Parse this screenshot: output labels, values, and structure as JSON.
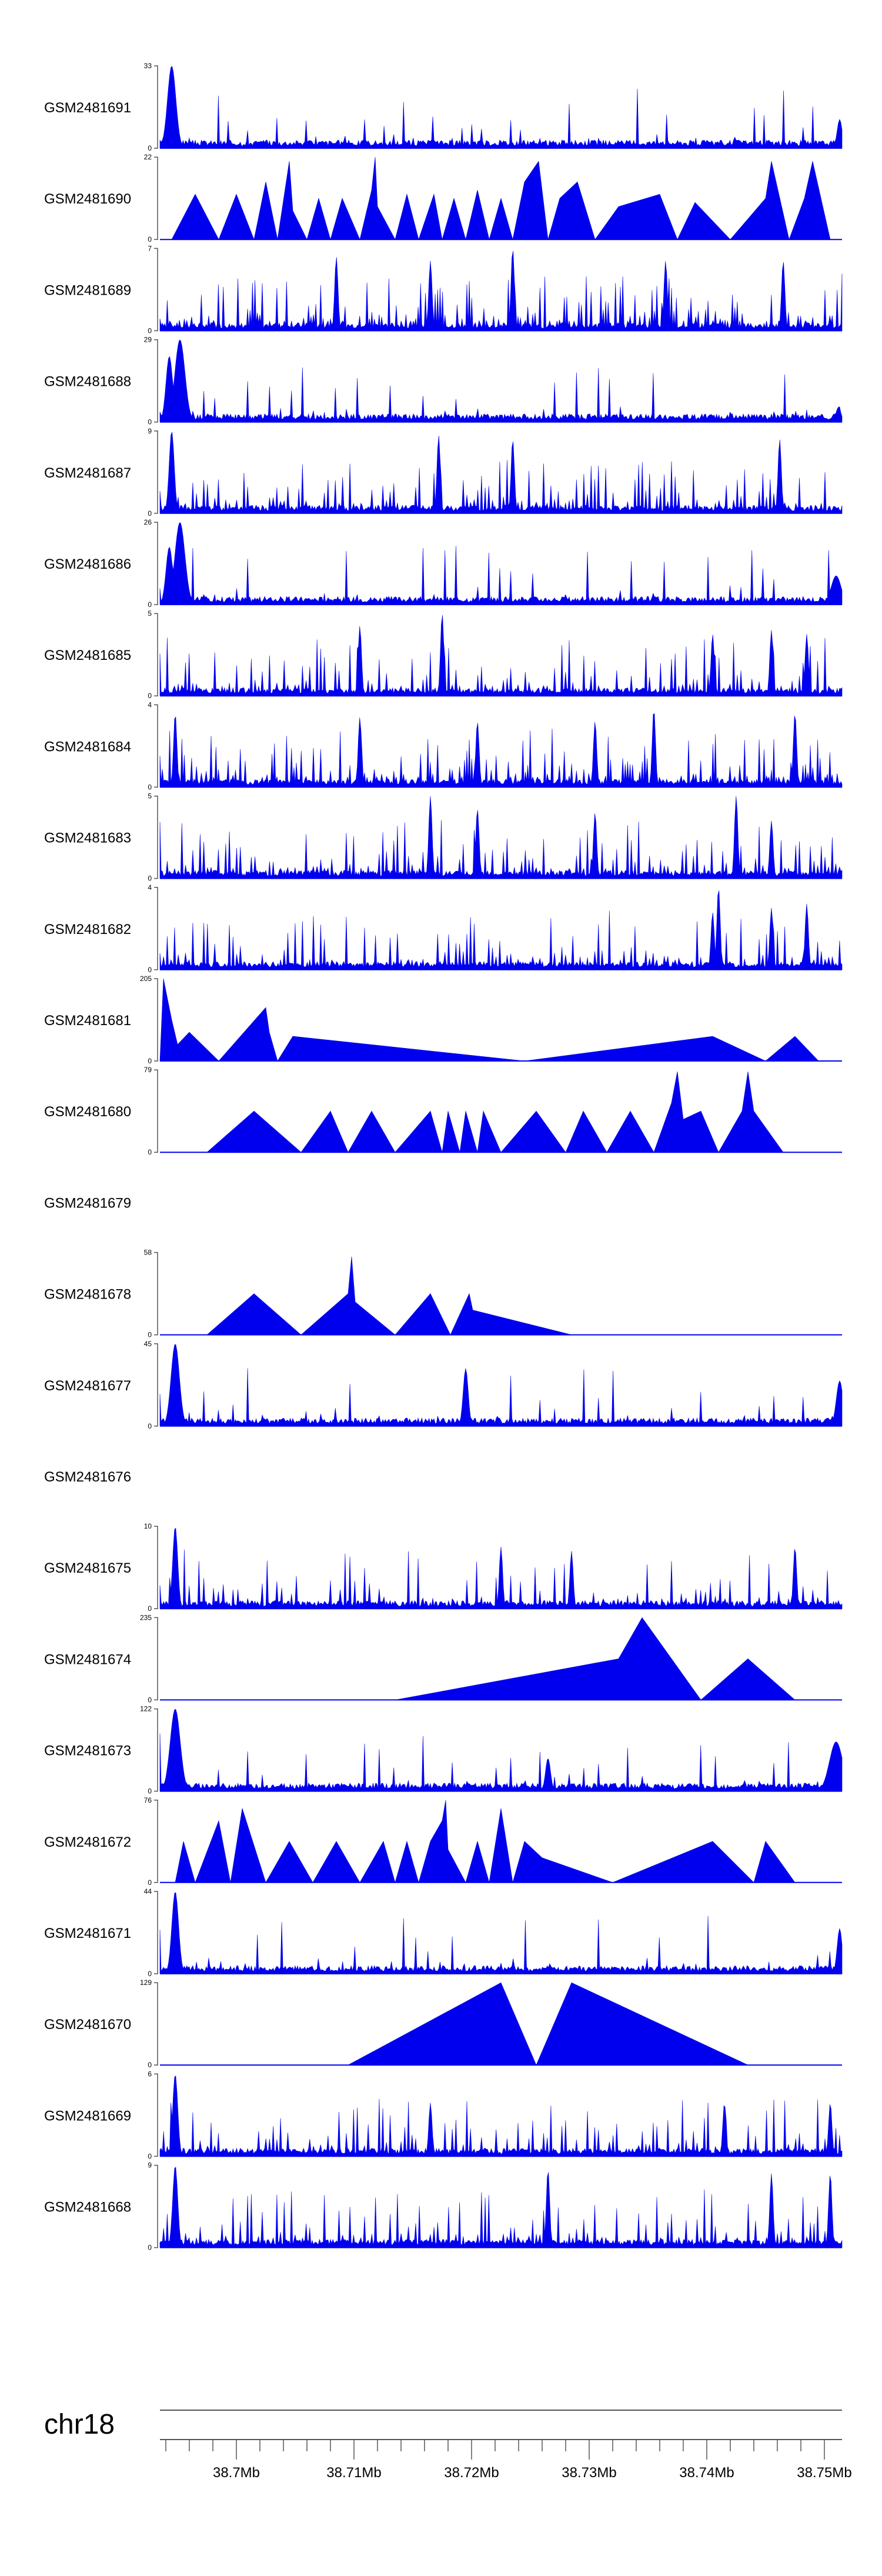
{
  "chart_data": {
    "type": "area",
    "title": "",
    "chromosome": "chr18",
    "track_color": "#0000ee",
    "axis_color": "#555555",
    "x_range_mb": [
      38.6935,
      38.7515
    ],
    "x_tick_labels": [
      {
        "pos": 38.7,
        "label": "38.7Mb"
      },
      {
        "pos": 38.71,
        "label": "38.71Mb"
      },
      {
        "pos": 38.72,
        "label": "38.72Mb"
      },
      {
        "pos": 38.73,
        "label": "38.73Mb"
      },
      {
        "pos": 38.74,
        "label": "38.74Mb"
      },
      {
        "pos": 38.75,
        "label": "38.75Mb"
      }
    ],
    "minor_tick_step_mb": 0.002,
    "tracks": [
      {
        "name": "GSM2481691",
        "ymax": 33,
        "ymin": 0,
        "kind": "dense",
        "spike_every": 8,
        "seed": 3,
        "peaks": [
          [
            38.6945,
            1.0,
            0.0005
          ],
          [
            38.7513,
            0.35,
            0.0003
          ]
        ]
      },
      {
        "name": "GSM2481690",
        "ymax": 22,
        "ymin": 0,
        "kind": "sparse",
        "points": [
          [
            38.6945,
            0
          ],
          [
            38.6965,
            0.55
          ],
          [
            38.6985,
            0
          ],
          [
            38.7,
            0.55
          ],
          [
            38.7015,
            0
          ],
          [
            38.7025,
            0.7
          ],
          [
            38.7035,
            0
          ],
          [
            38.7045,
            0.95
          ],
          [
            38.7048,
            0.35
          ],
          [
            38.706,
            0
          ],
          [
            38.707,
            0.5
          ],
          [
            38.708,
            0
          ],
          [
            38.709,
            0.5
          ],
          [
            38.7105,
            0
          ],
          [
            38.7115,
            0.6
          ],
          [
            38.7118,
            1.0
          ],
          [
            38.712,
            0.4
          ],
          [
            38.7135,
            0
          ],
          [
            38.7145,
            0.55
          ],
          [
            38.7155,
            0
          ],
          [
            38.7168,
            0.55
          ],
          [
            38.7175,
            0
          ],
          [
            38.7185,
            0.5
          ],
          [
            38.7195,
            0
          ],
          [
            38.7205,
            0.6
          ],
          [
            38.7215,
            0
          ],
          [
            38.7225,
            0.5
          ],
          [
            38.7235,
            0
          ],
          [
            38.7245,
            0.7
          ],
          [
            38.7257,
            0.95
          ],
          [
            38.7265,
            0
          ],
          [
            38.7275,
            0.5
          ],
          [
            38.729,
            0.7
          ],
          [
            38.7305,
            0
          ],
          [
            38.7325,
            0.4
          ],
          [
            38.736,
            0.55
          ],
          [
            38.7375,
            0
          ],
          [
            38.739,
            0.45
          ],
          [
            38.742,
            0
          ],
          [
            38.745,
            0.5
          ],
          [
            38.7455,
            0.95
          ],
          [
            38.747,
            0
          ],
          [
            38.7483,
            0.5
          ],
          [
            38.749,
            0.95
          ],
          [
            38.7505,
            0
          ]
        ]
      },
      {
        "name": "GSM2481689",
        "ymax": 7,
        "ymin": 0,
        "kind": "dense",
        "spike_every": 2,
        "seed": 7,
        "peaks": [
          [
            38.7085,
            0.9,
            0.0002
          ],
          [
            38.7165,
            0.85,
            0.0002
          ],
          [
            38.7235,
            1.0,
            0.0002
          ],
          [
            38.7365,
            0.85,
            0.0002
          ],
          [
            38.7465,
            0.85,
            0.0002
          ]
        ]
      },
      {
        "name": "GSM2481688",
        "ymax": 29,
        "ymin": 0,
        "kind": "dense",
        "spike_every": 9,
        "seed": 11,
        "peaks": [
          [
            38.6943,
            0.8,
            0.0004
          ],
          [
            38.6952,
            1.0,
            0.0006
          ],
          [
            38.7512,
            0.18,
            0.0003
          ]
        ]
      },
      {
        "name": "GSM2481687",
        "ymax": 9,
        "ymin": 0,
        "kind": "dense",
        "spike_every": 3,
        "seed": 13,
        "peaks": [
          [
            38.6945,
            1.0,
            0.0003
          ],
          [
            38.7172,
            0.95,
            0.0002
          ],
          [
            38.7235,
            0.9,
            0.0002
          ],
          [
            38.7462,
            0.9,
            0.0002
          ]
        ]
      },
      {
        "name": "GSM2481686",
        "ymax": 26,
        "ymin": 0,
        "kind": "dense",
        "spike_every": 9,
        "seed": 17,
        "peaks": [
          [
            38.6943,
            0.7,
            0.0004
          ],
          [
            38.6952,
            1.0,
            0.0006
          ],
          [
            38.751,
            0.35,
            0.0006
          ]
        ]
      },
      {
        "name": "GSM2481685",
        "ymax": 5,
        "ymin": 0,
        "kind": "dense",
        "spike_every": 3,
        "seed": 19,
        "peaks": [
          [
            38.7105,
            0.85,
            0.0002
          ],
          [
            38.7175,
            1.0,
            0.0002
          ],
          [
            38.7405,
            0.75,
            0.0002
          ],
          [
            38.7455,
            0.8,
            0.0002
          ],
          [
            38.7485,
            0.75,
            0.0002
          ]
        ]
      },
      {
        "name": "GSM2481684",
        "ymax": 4,
        "ymin": 0,
        "kind": "dense",
        "spike_every": 2,
        "seed": 23,
        "peaks": [
          [
            38.6948,
            0.9,
            0.0002
          ],
          [
            38.7105,
            0.85,
            0.0002
          ],
          [
            38.7205,
            0.8,
            0.0002
          ],
          [
            38.7305,
            0.8,
            0.0002
          ],
          [
            38.7355,
            0.95,
            0.0002
          ],
          [
            38.7475,
            0.9,
            0.0002
          ]
        ]
      },
      {
        "name": "GSM2481683",
        "ymax": 5,
        "ymin": 0,
        "kind": "dense",
        "spike_every": 3,
        "seed": 29,
        "peaks": [
          [
            38.7165,
            1.0,
            0.0002
          ],
          [
            38.7205,
            0.85,
            0.0002
          ],
          [
            38.7305,
            0.8,
            0.0002
          ],
          [
            38.7425,
            1.0,
            0.0002
          ],
          [
            38.7455,
            0.7,
            0.0002
          ]
        ]
      },
      {
        "name": "GSM2481682",
        "ymax": 4,
        "ymin": 0,
        "kind": "dense",
        "spike_every": 3,
        "seed": 31,
        "peaks": [
          [
            38.741,
            1.0,
            0.0002
          ],
          [
            38.7405,
            0.7,
            0.0002
          ],
          [
            38.7455,
            0.75,
            0.0002
          ],
          [
            38.7485,
            0.8,
            0.0002
          ]
        ]
      },
      {
        "name": "GSM2481681",
        "ymax": 205,
        "ymin": 0,
        "kind": "sparse",
        "points": [
          [
            38.6935,
            0
          ],
          [
            38.6938,
            1.0
          ],
          [
            38.6945,
            0.5
          ],
          [
            38.695,
            0.2
          ],
          [
            38.696,
            0.35
          ],
          [
            38.6985,
            0
          ],
          [
            38.7025,
            0.65
          ],
          [
            38.7028,
            0.35
          ],
          [
            38.7035,
            0
          ],
          [
            38.7048,
            0.3
          ],
          [
            38.7245,
            0
          ],
          [
            38.7405,
            0.3
          ],
          [
            38.745,
            0
          ],
          [
            38.7475,
            0.3
          ],
          [
            38.7495,
            0
          ]
        ]
      },
      {
        "name": "GSM2481680",
        "ymax": 79,
        "ymin": 0,
        "kind": "sparse",
        "points": [
          [
            38.6975,
            0
          ],
          [
            38.7015,
            0.5
          ],
          [
            38.7055,
            0
          ],
          [
            38.708,
            0.5
          ],
          [
            38.7095,
            0
          ],
          [
            38.7115,
            0.5
          ],
          [
            38.7135,
            0
          ],
          [
            38.7165,
            0.5
          ],
          [
            38.7175,
            0
          ],
          [
            38.718,
            0.5
          ],
          [
            38.719,
            0
          ],
          [
            38.7195,
            0.5
          ],
          [
            38.7205,
            0
          ],
          [
            38.721,
            0.5
          ],
          [
            38.7225,
            0
          ],
          [
            38.7255,
            0.5
          ],
          [
            38.728,
            0
          ],
          [
            38.7295,
            0.5
          ],
          [
            38.7315,
            0
          ],
          [
            38.7335,
            0.5
          ],
          [
            38.7355,
            0
          ],
          [
            38.737,
            0.6
          ],
          [
            38.7375,
            0.98
          ],
          [
            38.738,
            0.4
          ],
          [
            38.7395,
            0.5
          ],
          [
            38.741,
            0
          ],
          [
            38.743,
            0.5
          ],
          [
            38.7435,
            0.98
          ],
          [
            38.744,
            0.5
          ],
          [
            38.7465,
            0
          ]
        ]
      },
      {
        "name": "GSM2481679",
        "ymax": null,
        "ymin": null,
        "kind": "empty"
      },
      {
        "name": "GSM2481678",
        "ymax": 58,
        "ymin": 0,
        "kind": "sparse",
        "points": [
          [
            38.6975,
            0
          ],
          [
            38.7015,
            0.5
          ],
          [
            38.7055,
            0
          ],
          [
            38.7095,
            0.5
          ],
          [
            38.7098,
            0.95
          ],
          [
            38.7101,
            0.4
          ],
          [
            38.7135,
            0
          ],
          [
            38.7165,
            0.5
          ],
          [
            38.7182,
            0
          ],
          [
            38.7198,
            0.5
          ],
          [
            38.7201,
            0.3
          ],
          [
            38.7285,
            0
          ]
        ]
      },
      {
        "name": "GSM2481677",
        "ymax": 45,
        "ymin": 0,
        "kind": "dense",
        "spike_every": 12,
        "seed": 37,
        "peaks": [
          [
            38.6948,
            1.0,
            0.0005
          ],
          [
            38.7195,
            0.7,
            0.0003
          ],
          [
            38.7222,
            0.12,
            0.0002
          ],
          [
            38.7513,
            0.55,
            0.0004
          ]
        ]
      },
      {
        "name": "GSM2481676",
        "ymax": null,
        "ymin": null,
        "kind": "empty"
      },
      {
        "name": "GSM2481675",
        "ymax": 10,
        "ymin": 0,
        "kind": "dense",
        "spike_every": 4,
        "seed": 41,
        "peaks": [
          [
            38.6948,
            1.0,
            0.0003
          ],
          [
            38.7225,
            0.75,
            0.0002
          ],
          [
            38.7285,
            0.7,
            0.0002
          ],
          [
            38.7475,
            0.75,
            0.0002
          ]
        ]
      },
      {
        "name": "GSM2481674",
        "ymax": 235,
        "ymin": 0,
        "kind": "sparse",
        "points": [
          [
            38.7135,
            0
          ],
          [
            38.7325,
            0.5
          ],
          [
            38.7345,
            1.0
          ],
          [
            38.7395,
            0
          ],
          [
            38.7435,
            0.5
          ],
          [
            38.7475,
            0
          ]
        ]
      },
      {
        "name": "GSM2481673",
        "ymax": 122,
        "ymin": 0,
        "kind": "dense",
        "spike_every": 12,
        "seed": 43,
        "peaks": [
          [
            38.6948,
            1.0,
            0.0006
          ],
          [
            38.7265,
            0.4,
            0.0003
          ],
          [
            38.751,
            0.6,
            0.0008
          ]
        ]
      },
      {
        "name": "GSM2481672",
        "ymax": 76,
        "ymin": 0,
        "kind": "sparse",
        "points": [
          [
            38.6948,
            0
          ],
          [
            38.6955,
            0.5
          ],
          [
            38.6965,
            0
          ],
          [
            38.6985,
            0.75
          ],
          [
            38.6995,
            0
          ],
          [
            38.7005,
            0.9
          ],
          [
            38.7025,
            0
          ],
          [
            38.7045,
            0.5
          ],
          [
            38.7065,
            0
          ],
          [
            38.7085,
            0.5
          ],
          [
            38.7105,
            0
          ],
          [
            38.7125,
            0.5
          ],
          [
            38.7135,
            0
          ],
          [
            38.7145,
            0.5
          ],
          [
            38.7155,
            0
          ],
          [
            38.7165,
            0.5
          ],
          [
            38.7175,
            0.75
          ],
          [
            38.7178,
            1.0
          ],
          [
            38.718,
            0.4
          ],
          [
            38.7195,
            0
          ],
          [
            38.7205,
            0.5
          ],
          [
            38.7215,
            0
          ],
          [
            38.7225,
            0.9
          ],
          [
            38.7235,
            0
          ],
          [
            38.7245,
            0.5
          ],
          [
            38.726,
            0.3
          ],
          [
            38.732,
            0
          ],
          [
            38.7405,
            0.5
          ],
          [
            38.744,
            0
          ],
          [
            38.745,
            0.5
          ],
          [
            38.7475,
            0
          ]
        ]
      },
      {
        "name": "GSM2481671",
        "ymax": 44,
        "ymin": 0,
        "kind": "dense",
        "spike_every": 10,
        "seed": 47,
        "peaks": [
          [
            38.6948,
            1.0,
            0.0004
          ],
          [
            38.7513,
            0.55,
            0.0003
          ]
        ]
      },
      {
        "name": "GSM2481670",
        "ymax": 129,
        "ymin": 0,
        "kind": "sparse",
        "points": [
          [
            38.7095,
            0
          ],
          [
            38.7225,
            1.0
          ],
          [
            38.7255,
            0
          ],
          [
            38.7285,
            1.0
          ],
          [
            38.7435,
            0
          ]
        ]
      },
      {
        "name": "GSM2481669",
        "ymax": 6,
        "ymin": 0,
        "kind": "dense",
        "spike_every": 3,
        "seed": 53,
        "peaks": [
          [
            38.6948,
            1.0,
            0.0003
          ],
          [
            38.7165,
            0.65,
            0.0002
          ],
          [
            38.7415,
            0.65,
            0.0002
          ],
          [
            38.7505,
            0.65,
            0.0002
          ]
        ]
      },
      {
        "name": "GSM2481668",
        "ymax": 9,
        "ymin": 0,
        "kind": "dense",
        "spike_every": 3,
        "seed": 59,
        "peaks": [
          [
            38.6948,
            1.0,
            0.0003
          ],
          [
            38.7265,
            0.95,
            0.0002
          ],
          [
            38.7455,
            0.9,
            0.0002
          ],
          [
            38.7505,
            0.9,
            0.0002
          ]
        ]
      }
    ]
  }
}
